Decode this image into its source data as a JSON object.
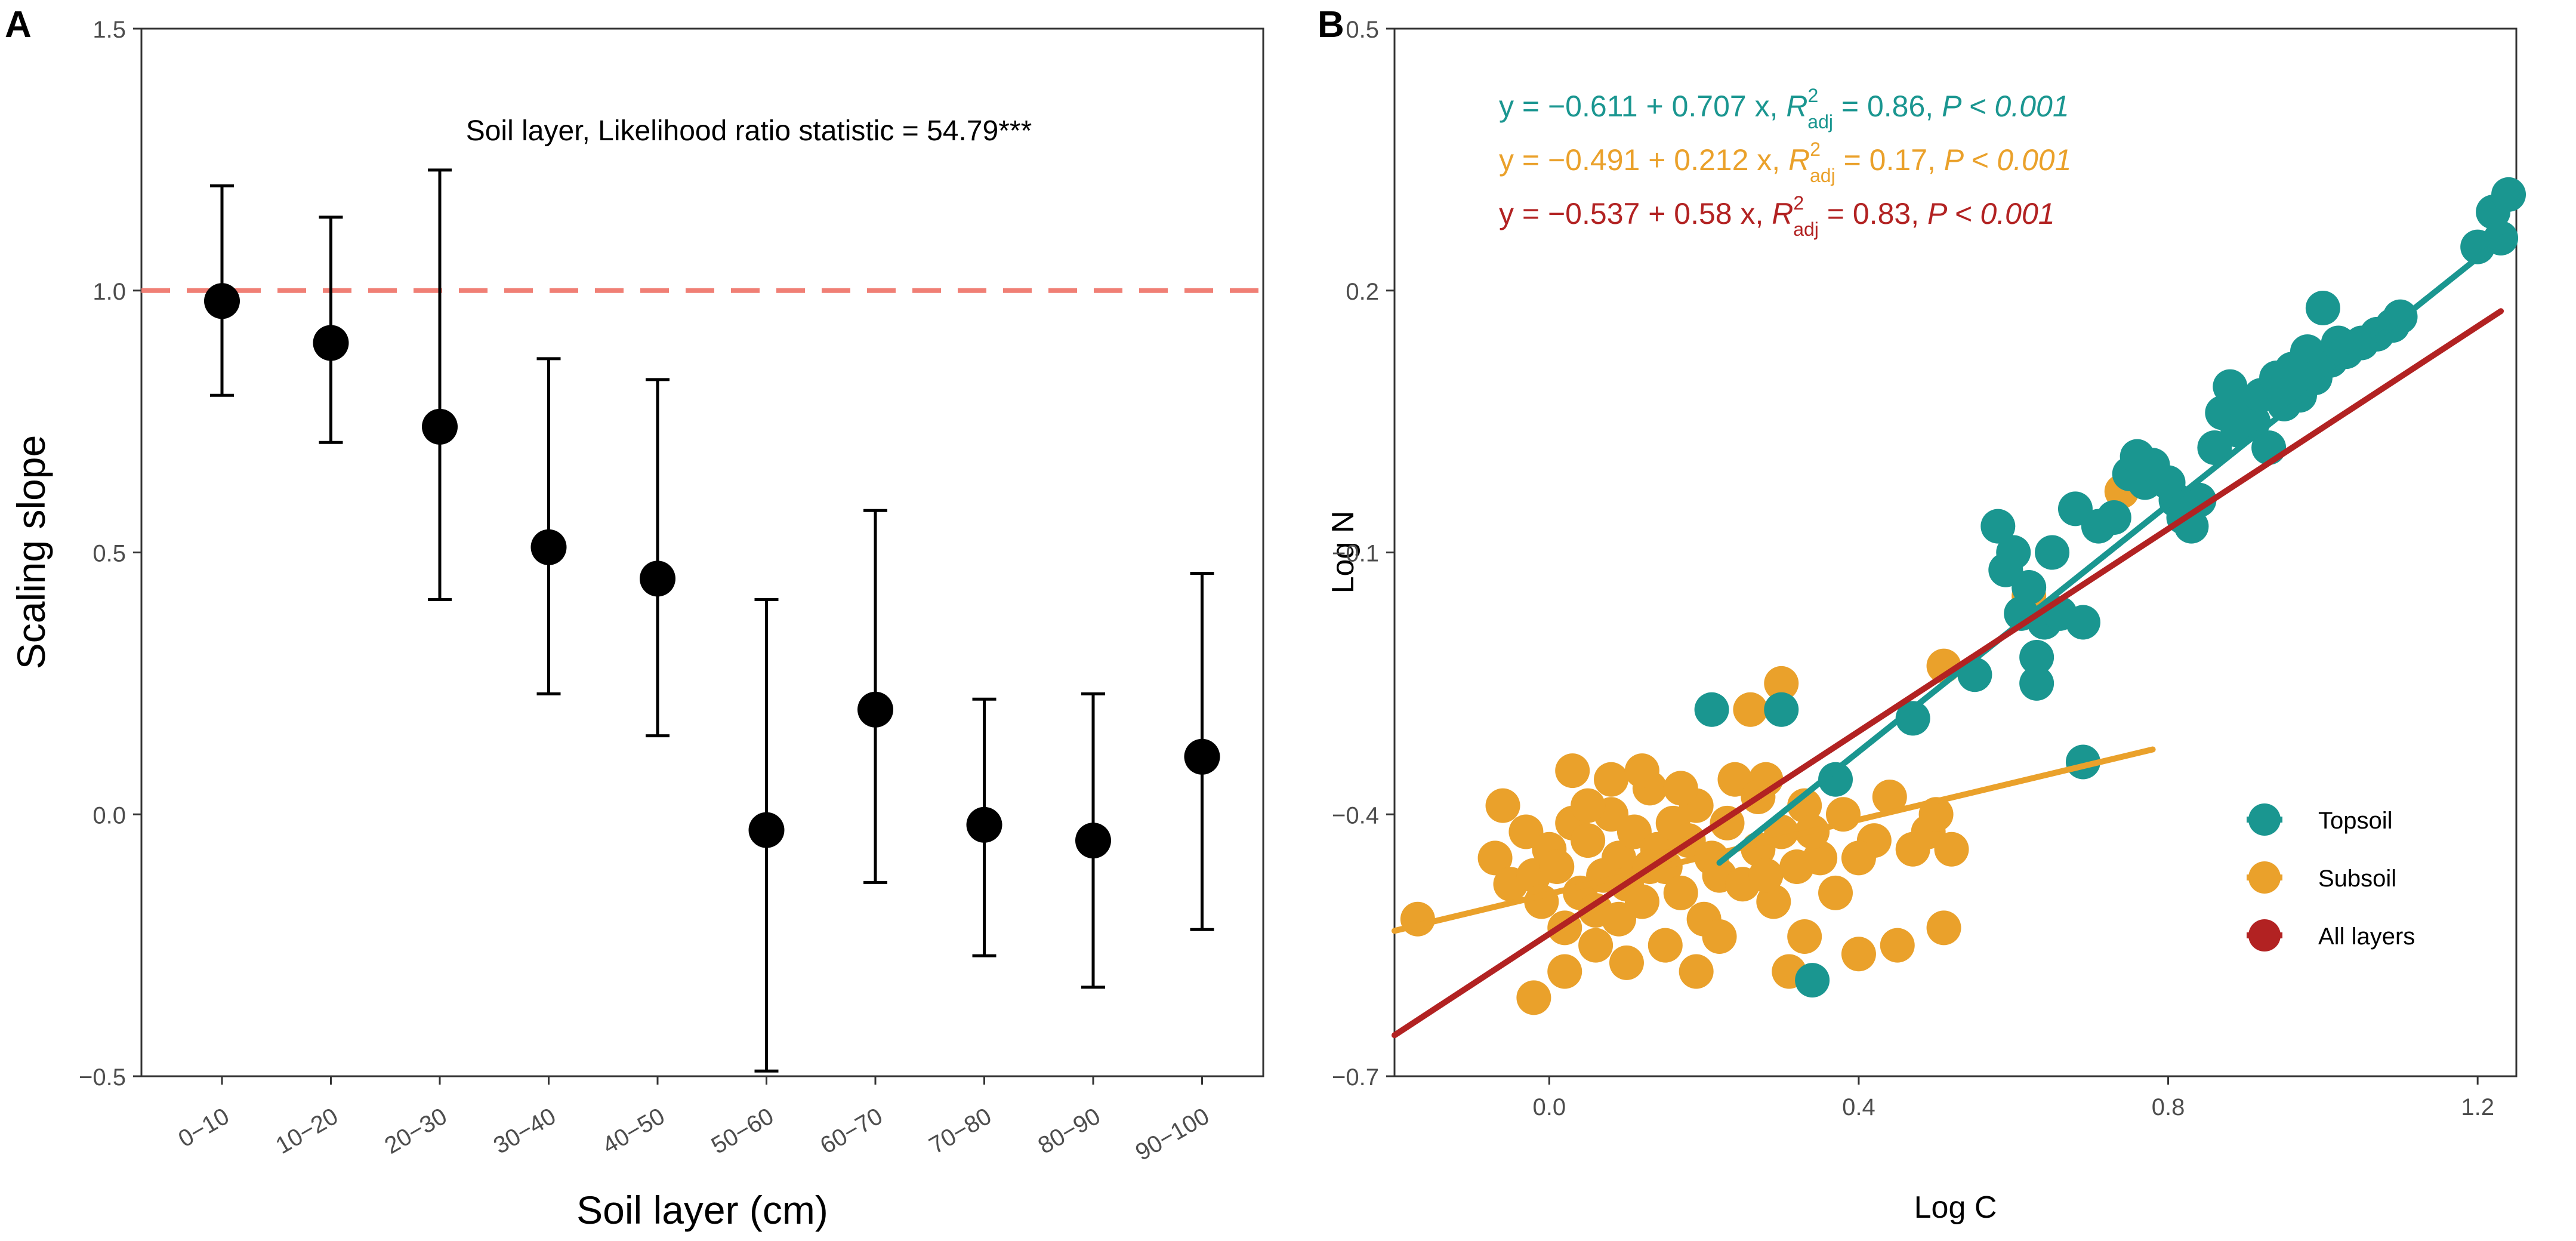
{
  "colors": {
    "topsoil": "#1a9690",
    "subsoil": "#eaa12b",
    "all": "#b22222",
    "reference": "#f07f75",
    "points": "#000000"
  },
  "chart_data": [
    {
      "panel": "A",
      "type": "scatter",
      "title": "",
      "xlabel": "Soil layer (cm)",
      "ylabel": "Scaling slope",
      "categories": [
        "0−10",
        "10−20",
        "20−30",
        "30−40",
        "40−50",
        "50−60",
        "60−70",
        "70−80",
        "80−90",
        "90−100"
      ],
      "values": [
        0.98,
        0.9,
        0.74,
        0.51,
        0.45,
        -0.03,
        0.2,
        -0.02,
        -0.05,
        0.11
      ],
      "ci_low": [
        0.8,
        0.71,
        0.41,
        0.23,
        0.15,
        -0.49,
        -0.13,
        -0.27,
        -0.33,
        -0.22
      ],
      "ci_high": [
        1.2,
        1.14,
        1.23,
        0.87,
        0.83,
        0.41,
        0.58,
        0.22,
        0.23,
        0.46
      ],
      "ylim": [
        -0.5,
        1.5
      ],
      "yticks": [
        -0.5,
        0.0,
        0.5,
        1.0,
        1.5
      ],
      "ytick_labels": [
        "−0.5",
        "0.0",
        "0.5",
        "1.0",
        "1.5"
      ],
      "reference_line": 1.0,
      "annotation": "Soil layer, Likelihood ratio statistic = 54.79***"
    },
    {
      "panel": "B",
      "type": "scatter",
      "title": "",
      "xlabel": "Log C",
      "ylabel": "Log N",
      "xlim": [
        -0.2,
        1.25
      ],
      "ylim": [
        -0.7,
        0.5
      ],
      "xticks": [
        0.0,
        0.4,
        0.8,
        1.2
      ],
      "xtick_labels": [
        "0.0",
        "0.4",
        "0.8",
        "1.2"
      ],
      "yticks": [
        -0.7,
        -0.4,
        -0.1,
        0.2,
        0.5
      ],
      "ytick_labels": [
        "−0.7",
        "−0.4",
        "−0.1",
        "0.2",
        "0.5"
      ],
      "legend_position": "bottom-right",
      "series": [
        {
          "name": "Subsoil",
          "color_key": "subsoil",
          "points": [
            [
              -0.17,
              -0.52
            ],
            [
              -0.07,
              -0.45
            ],
            [
              -0.05,
              -0.48
            ],
            [
              -0.06,
              -0.39
            ],
            [
              -0.03,
              -0.42
            ],
            [
              -0.02,
              -0.47
            ],
            [
              -0.01,
              -0.5
            ],
            [
              0.0,
              -0.44
            ],
            [
              0.01,
              -0.46
            ],
            [
              0.02,
              -0.53
            ],
            [
              0.03,
              -0.41
            ],
            [
              0.04,
              -0.49
            ],
            [
              0.05,
              -0.43
            ],
            [
              0.06,
              -0.51
            ],
            [
              0.07,
              -0.47
            ],
            [
              0.08,
              -0.4
            ],
            [
              0.09,
              -0.45
            ],
            [
              0.1,
              -0.48
            ],
            [
              0.11,
              -0.42
            ],
            [
              0.12,
              -0.5
            ],
            [
              0.13,
              -0.37
            ],
            [
              0.14,
              -0.44
            ],
            [
              0.15,
              -0.46
            ],
            [
              0.16,
              -0.41
            ],
            [
              0.17,
              -0.49
            ],
            [
              0.18,
              -0.43
            ],
            [
              0.19,
              -0.39
            ],
            [
              0.2,
              -0.52
            ],
            [
              0.21,
              -0.45
            ],
            [
              0.22,
              -0.47
            ],
            [
              0.23,
              -0.41
            ],
            [
              0.25,
              -0.48
            ],
            [
              0.27,
              -0.44
            ],
            [
              0.28,
              -0.36
            ],
            [
              0.29,
              -0.5
            ],
            [
              0.3,
              -0.42
            ],
            [
              0.32,
              -0.46
            ],
            [
              0.33,
              -0.54
            ],
            [
              0.35,
              -0.45
            ],
            [
              0.37,
              -0.49
            ],
            [
              0.38,
              -0.4
            ],
            [
              0.4,
              -0.56
            ],
            [
              0.42,
              -0.43
            ],
            [
              0.44,
              -0.38
            ],
            [
              0.45,
              -0.55
            ],
            [
              0.47,
              -0.44
            ],
            [
              0.49,
              -0.42
            ],
            [
              0.5,
              -0.4
            ],
            [
              0.51,
              -0.53
            ],
            [
              0.52,
              -0.44
            ],
            [
              -0.02,
              -0.61
            ],
            [
              0.02,
              -0.58
            ],
            [
              0.03,
              -0.35
            ],
            [
              0.06,
              -0.55
            ],
            [
              0.08,
              -0.36
            ],
            [
              0.1,
              -0.57
            ],
            [
              0.12,
              -0.35
            ],
            [
              0.15,
              -0.55
            ],
            [
              0.19,
              -0.58
            ],
            [
              0.22,
              -0.54
            ],
            [
              0.24,
              -0.36
            ],
            [
              0.27,
              -0.38
            ],
            [
              0.3,
              -0.25
            ],
            [
              0.26,
              -0.28
            ],
            [
              0.31,
              -0.58
            ],
            [
              0.33,
              -0.39
            ],
            [
              0.51,
              -0.23
            ],
            [
              0.4,
              -0.45
            ],
            [
              0.05,
              -0.39
            ],
            [
              0.09,
              -0.52
            ],
            [
              0.13,
              -0.46
            ],
            [
              0.17,
              -0.37
            ],
            [
              0.28,
              -0.47
            ],
            [
              0.34,
              -0.42
            ],
            [
              0.62,
              -0.15
            ],
            [
              0.74,
              -0.03
            ]
          ]
        },
        {
          "name": "Topsoil",
          "color_key": "topsoil",
          "points": [
            [
              0.21,
              -0.28
            ],
            [
              0.3,
              -0.28
            ],
            [
              0.34,
              -0.59
            ],
            [
              0.37,
              -0.36
            ],
            [
              0.47,
              -0.29
            ],
            [
              0.55,
              -0.24
            ],
            [
              0.58,
              -0.07
            ],
            [
              0.59,
              -0.12
            ],
            [
              0.6,
              -0.1
            ],
            [
              0.61,
              -0.17
            ],
            [
              0.62,
              -0.14
            ],
            [
              0.63,
              -0.22
            ],
            [
              0.63,
              -0.25
            ],
            [
              0.64,
              -0.18
            ],
            [
              0.65,
              -0.1
            ],
            [
              0.66,
              -0.17
            ],
            [
              0.68,
              -0.05
            ],
            [
              0.69,
              -0.18
            ],
            [
              0.69,
              -0.34
            ],
            [
              0.71,
              -0.07
            ],
            [
              0.73,
              -0.06
            ],
            [
              0.75,
              -0.01
            ],
            [
              0.76,
              0.01
            ],
            [
              0.77,
              -0.02
            ],
            [
              0.78,
              0.0
            ],
            [
              0.8,
              -0.02
            ],
            [
              0.81,
              -0.04
            ],
            [
              0.82,
              -0.06
            ],
            [
              0.83,
              -0.07
            ],
            [
              0.84,
              -0.04
            ],
            [
              0.86,
              0.02
            ],
            [
              0.87,
              0.06
            ],
            [
              0.88,
              0.09
            ],
            [
              0.89,
              0.04
            ],
            [
              0.9,
              0.07
            ],
            [
              0.91,
              0.05
            ],
            [
              0.92,
              0.08
            ],
            [
              0.93,
              0.02
            ],
            [
              0.94,
              0.1
            ],
            [
              0.95,
              0.07
            ],
            [
              0.96,
              0.11
            ],
            [
              0.97,
              0.08
            ],
            [
              0.98,
              0.13
            ],
            [
              0.99,
              0.1
            ],
            [
              1.0,
              0.18
            ],
            [
              1.01,
              0.12
            ],
            [
              1.02,
              0.14
            ],
            [
              1.03,
              0.13
            ],
            [
              1.05,
              0.14
            ],
            [
              1.07,
              0.15
            ],
            [
              1.09,
              0.16
            ],
            [
              1.1,
              0.17
            ],
            [
              1.2,
              0.25
            ],
            [
              1.22,
              0.29
            ],
            [
              1.23,
              0.26
            ],
            [
              1.24,
              0.31
            ]
          ]
        }
      ],
      "fits": [
        {
          "name": "Topsoil",
          "color_key": "topsoil",
          "intercept": -0.611,
          "slope": 0.707,
          "x_range": [
            0.22,
            1.24
          ],
          "equation": "y = −0.611 + 0.707 x, R²adj = 0.86, P < 0.001",
          "eq_prefix": "y = −0.611 + 0.707 x, ",
          "eq_r2_label": "R",
          "eq_r2_sup": "2",
          "eq_r2_sub": "adj",
          "eq_suffix_value": " = 0.86, ",
          "eq_p": "P < 0.001"
        },
        {
          "name": "Subsoil",
          "color_key": "subsoil",
          "intercept": -0.491,
          "slope": 0.212,
          "x_range": [
            -0.2,
            0.78
          ],
          "equation": "y = −0.491 + 0.212 x, R²adj = 0.17, P < 0.001",
          "eq_prefix": "y = −0.491 + 0.212 x, ",
          "eq_r2_label": "R",
          "eq_r2_sup": "2",
          "eq_r2_sub": "adj",
          "eq_suffix_value": " = 0.17, ",
          "eq_p": "P < 0.001"
        },
        {
          "name": "All layers",
          "color_key": "all",
          "intercept": -0.537,
          "slope": 0.58,
          "x_range": [
            -0.2,
            1.23
          ],
          "equation": "y = −0.537 + 0.58 x, R²adj = 0.83, P < 0.001",
          "eq_prefix": "y = −0.537 + 0.58 x, ",
          "eq_r2_label": "R",
          "eq_r2_sup": "2",
          "eq_r2_sub": "adj",
          "eq_suffix_value": " = 0.83, ",
          "eq_p": "P < 0.001"
        }
      ],
      "legend": [
        {
          "label": "Topsoil",
          "color_key": "topsoil"
        },
        {
          "label": "Subsoil",
          "color_key": "subsoil"
        },
        {
          "label": "All layers",
          "color_key": "all"
        }
      ]
    }
  ]
}
